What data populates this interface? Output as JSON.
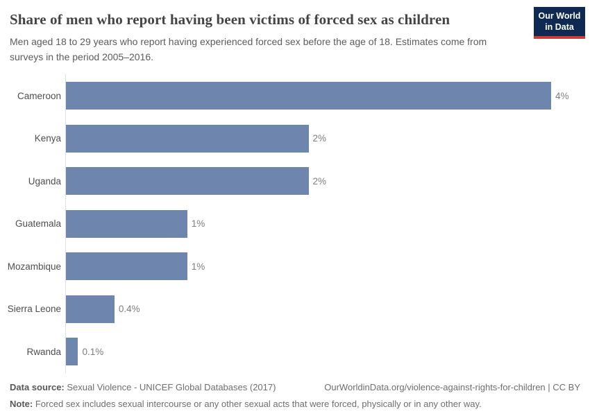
{
  "header": {
    "title": "Share of men who report having been victims of forced sex as children",
    "subtitle": "Men aged 18 to 29 years who report having experienced forced sex before the age of 18. Estimates come from surveys in the period 2005–2016.",
    "logo": {
      "line1": "Our World",
      "line2": "in Data"
    }
  },
  "chart_data": {
    "type": "bar",
    "orientation": "horizontal",
    "title": "Share of men who report having been victims of forced sex as children",
    "categories": [
      "Cameroon",
      "Kenya",
      "Uganda",
      "Guatemala",
      "Mozambique",
      "Sierra Leone",
      "Rwanda"
    ],
    "values": [
      4,
      2,
      2,
      1,
      1,
      0.4,
      0.1
    ],
    "value_labels": [
      "4%",
      "2%",
      "2%",
      "1%",
      "1%",
      "0.4%",
      "0.1%"
    ],
    "unit": "%",
    "xlim": [
      0,
      4
    ],
    "grid": false,
    "legend": "none",
    "bar_color": "#6e85ae",
    "axis_color": "#e0e0e0"
  },
  "footer": {
    "datasource_label": "Data source:",
    "datasource_text": " Sexual Violence - UNICEF Global Databases (2017)",
    "url_text": "OurWorldinData.org/violence-against-rights-for-children | CC BY",
    "note_label": "Note:",
    "note_text": " Forced sex includes sexual intercourse or any other sexual acts that were forced, physically or in any other way."
  }
}
